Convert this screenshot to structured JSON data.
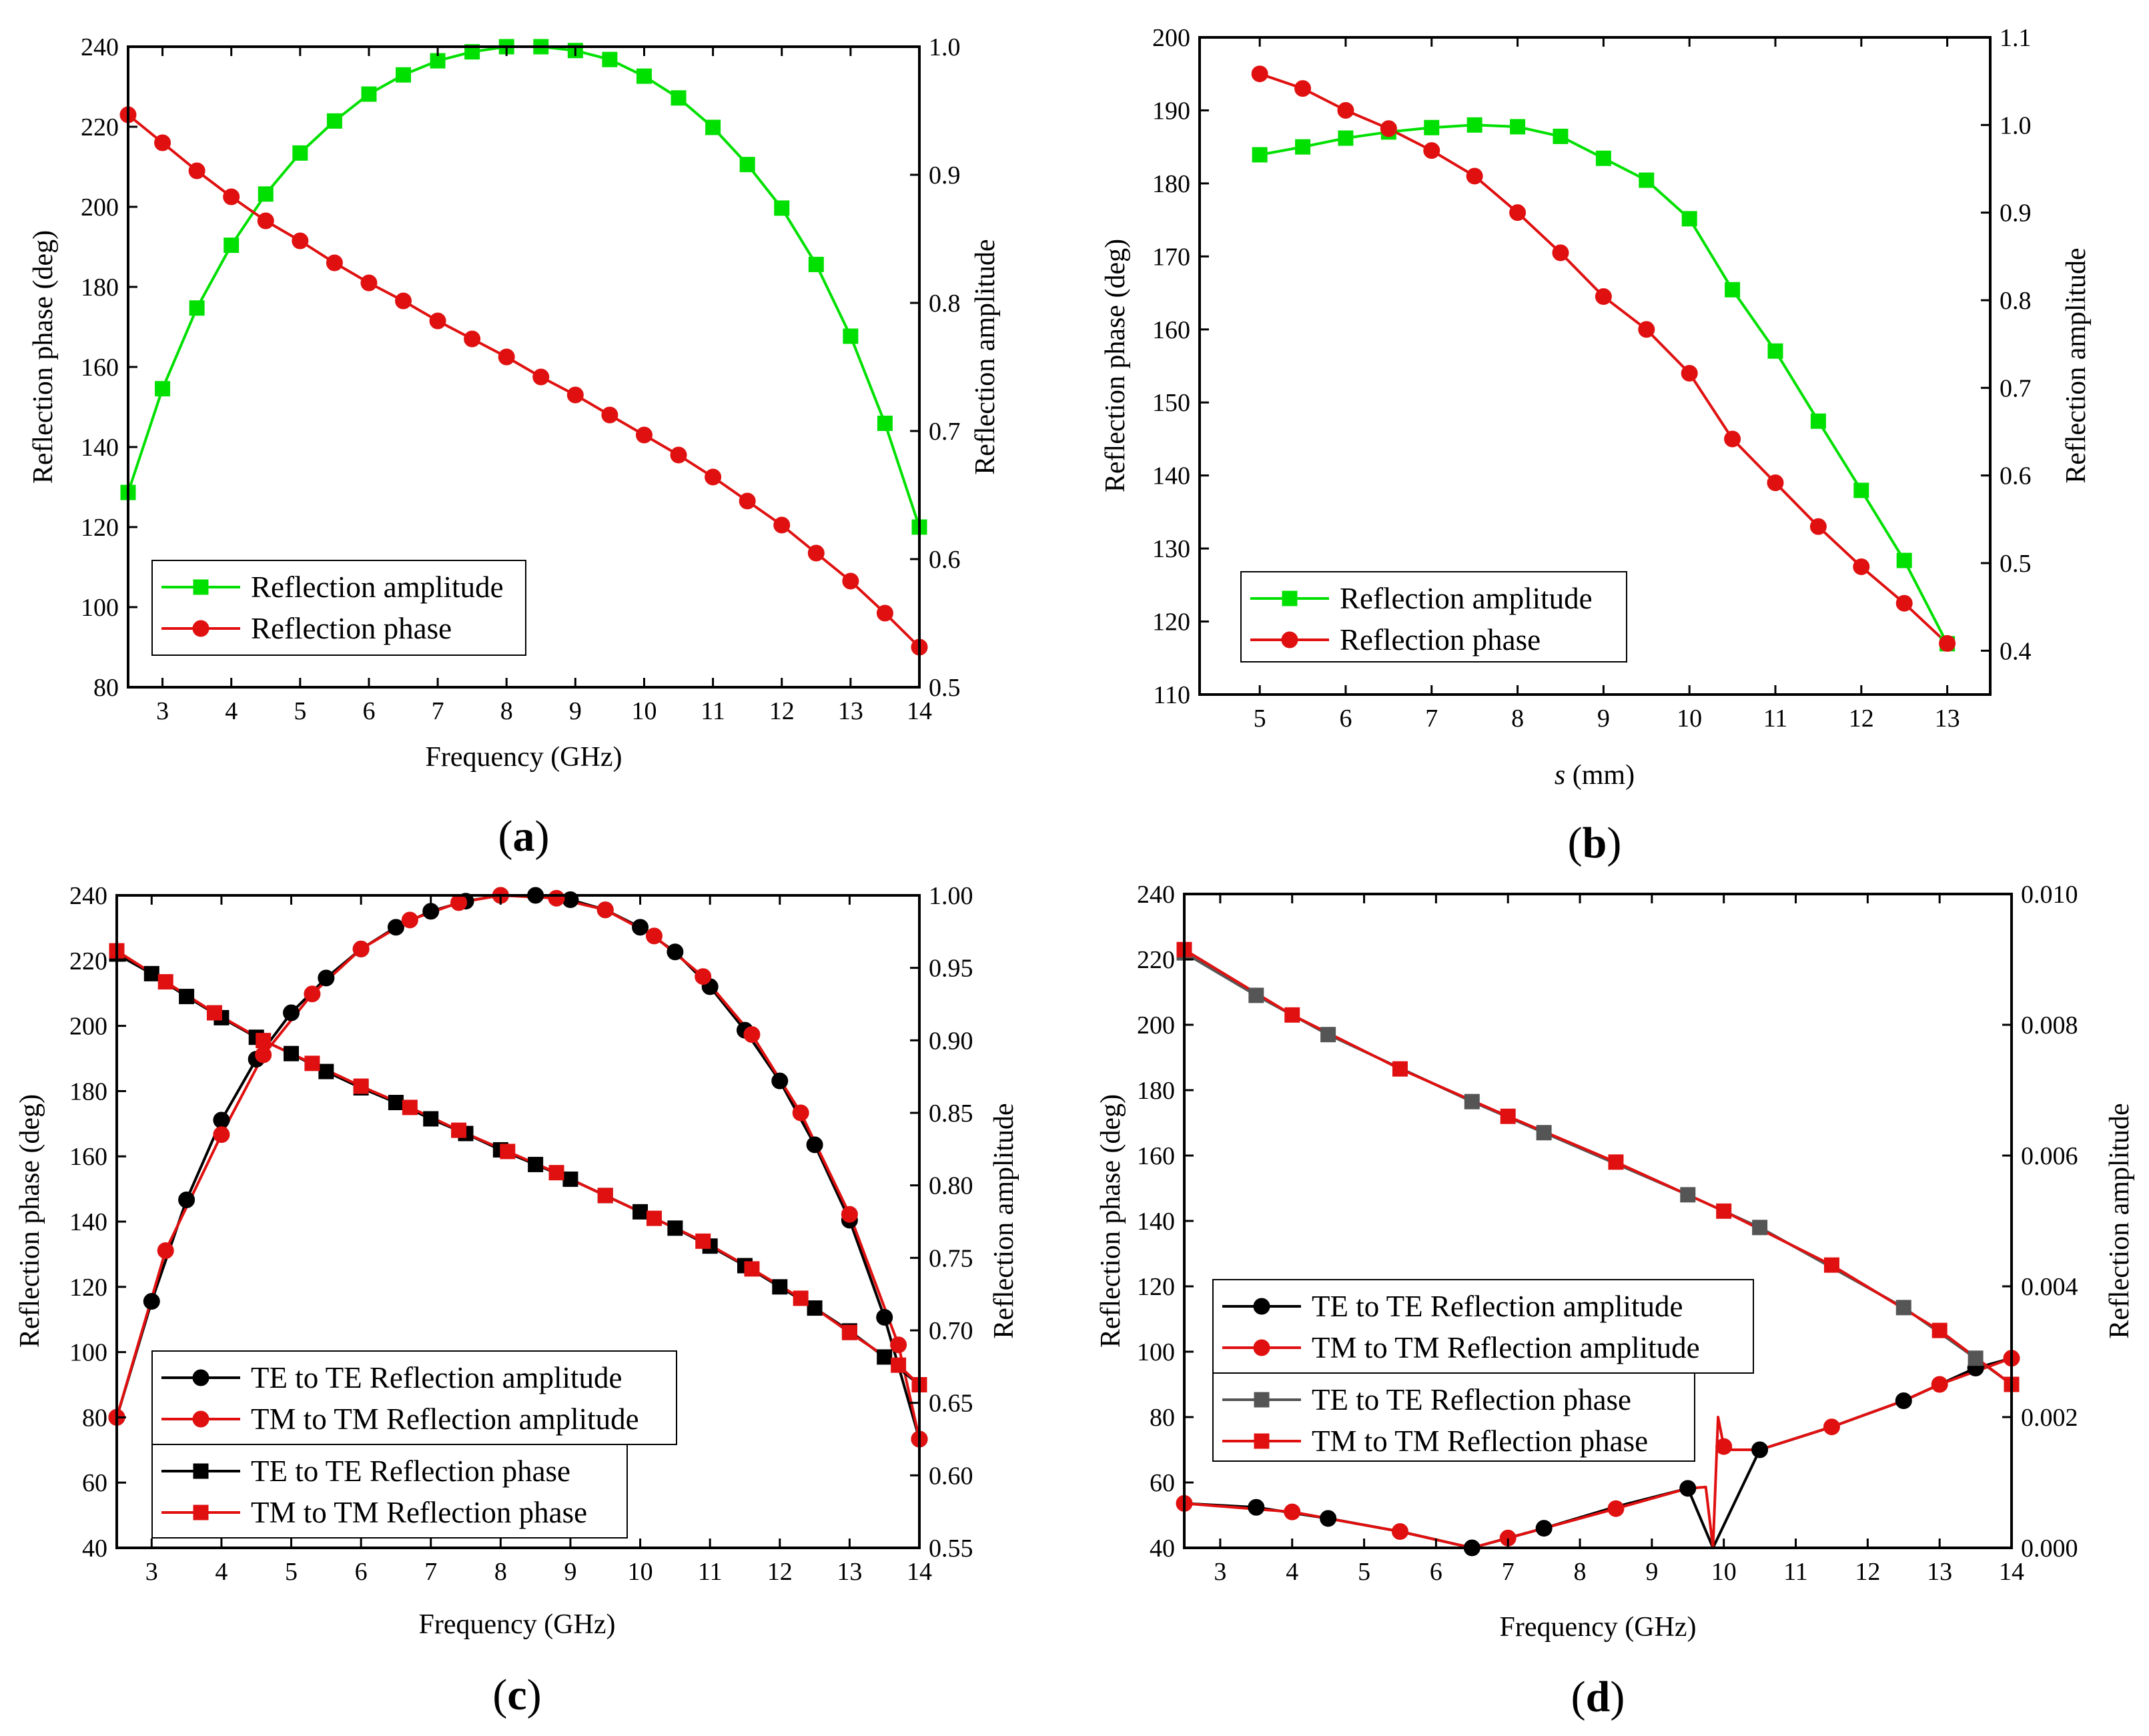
{
  "chart_data": [
    {
      "type": "line",
      "panel_label": "(a)",
      "xlabel": "Frequency (GHz)",
      "ylabel_left": "Reflection phase (deg)",
      "ylabel_right": "Reflection amplitude",
      "xlim": [
        2.5,
        14
      ],
      "ylim_left": [
        80,
        240
      ],
      "ylim_right": [
        0.5,
        1.0
      ],
      "x_ticks": [
        3,
        4,
        5,
        6,
        7,
        8,
        9,
        10,
        11,
        12,
        13,
        14
      ],
      "y_ticks_left": [
        80,
        100,
        120,
        140,
        160,
        180,
        200,
        220,
        240
      ],
      "y_ticks_right": [
        0.5,
        0.6,
        0.7,
        0.8,
        0.9,
        1.0
      ],
      "y_tick_labels_right": [
        "0.5",
        "0.6",
        "0.7",
        "0.8",
        "0.9",
        "1.0"
      ],
      "legend": {
        "placement": "bottom-left"
      },
      "series": [
        {
          "name": "Reflection amplitude",
          "axis": "right",
          "color": "#00e000",
          "marker": "square",
          "x": [
            2.5,
            3,
            3.5,
            4,
            4.5,
            5,
            5.5,
            6,
            6.5,
            7,
            7.5,
            8,
            8.5,
            9,
            9.5,
            10,
            10.5,
            11,
            11.5,
            12,
            12.5,
            13,
            13.5,
            14
          ],
          "values": [
            0.652,
            0.733,
            0.796,
            0.845,
            0.885,
            0.917,
            0.942,
            0.963,
            0.978,
            0.989,
            0.996,
            1.0,
            1.0,
            0.997,
            0.99,
            0.977,
            0.96,
            0.937,
            0.908,
            0.874,
            0.83,
            0.774,
            0.706,
            0.625
          ]
        },
        {
          "name": "Reflection phase",
          "axis": "left",
          "color": "#e01010",
          "marker": "circle",
          "x": [
            2.5,
            3,
            3.5,
            4,
            4.5,
            5,
            5.5,
            6,
            6.5,
            7,
            7.5,
            8,
            8.5,
            9,
            9.5,
            10,
            10.5,
            11,
            11.5,
            12,
            12.5,
            13,
            13.5,
            14
          ],
          "values": [
            223,
            216,
            209,
            202.5,
            196.5,
            191.5,
            186,
            181,
            176.5,
            171.5,
            167,
            162.5,
            157.5,
            153,
            148,
            143,
            138,
            132.5,
            126.5,
            120.5,
            113.5,
            106.5,
            98.5,
            90
          ]
        }
      ]
    },
    {
      "type": "line",
      "panel_label": "(b)",
      "xlabel_italic": "s",
      "xlabel": " (mm)",
      "ylabel_left": "Reflection phase (deg)",
      "ylabel_right": "Reflection amplitude",
      "xlim": [
        4.3,
        13.5
      ],
      "ylim_left": [
        110,
        200
      ],
      "ylim_right": [
        0.35,
        1.1
      ],
      "x_ticks": [
        5,
        6,
        7,
        8,
        9,
        10,
        11,
        12,
        13
      ],
      "y_ticks_left": [
        110,
        120,
        130,
        140,
        150,
        160,
        170,
        180,
        190,
        200
      ],
      "y_ticks_right": [
        0.4,
        0.5,
        0.6,
        0.7,
        0.8,
        0.9,
        1.0,
        1.1
      ],
      "y_tick_labels_right": [
        "0.4",
        "0.5",
        "0.6",
        "0.7",
        "0.8",
        "0.9",
        "1.0",
        "1.1"
      ],
      "legend": {
        "placement": "bottom-left"
      },
      "series": [
        {
          "name": "Reflection amplitude",
          "axis": "right",
          "color": "#00e000",
          "marker": "square",
          "x": [
            5,
            5.5,
            6,
            6.5,
            7,
            7.5,
            8,
            8.5,
            9,
            9.5,
            10,
            10.5,
            11,
            11.5,
            12,
            12.5,
            13
          ],
          "values": [
            0.966,
            0.975,
            0.985,
            0.992,
            0.997,
            1.0,
            0.998,
            0.987,
            0.962,
            0.937,
            0.893,
            0.812,
            0.742,
            0.662,
            0.583,
            0.503,
            0.408
          ]
        },
        {
          "name": "Reflection phase",
          "axis": "left",
          "color": "#e01010",
          "marker": "circle",
          "x": [
            5,
            5.5,
            6,
            6.5,
            7,
            7.5,
            8,
            8.5,
            9,
            9.5,
            10,
            10.5,
            11,
            11.5,
            12,
            12.5,
            13
          ],
          "values": [
            195,
            193,
            190,
            187.5,
            184.5,
            181,
            176,
            170.5,
            164.5,
            160,
            154,
            145,
            139,
            133,
            127.5,
            122.5,
            117
          ]
        }
      ]
    },
    {
      "type": "line",
      "panel_label": "(c)",
      "xlabel": "Frequency (GHz)",
      "ylabel_left": "Reflection phase (deg)",
      "ylabel_right": "Reflection amplitude",
      "xlim": [
        2.5,
        14
      ],
      "ylim_left": [
        40,
        240
      ],
      "ylim_right": [
        0.55,
        1.0
      ],
      "x_ticks": [
        3,
        4,
        5,
        6,
        7,
        8,
        9,
        10,
        11,
        12,
        13,
        14
      ],
      "y_ticks_left": [
        40,
        60,
        80,
        100,
        120,
        140,
        160,
        180,
        200,
        220,
        240
      ],
      "y_ticks_right": [
        0.55,
        0.6,
        0.65,
        0.7,
        0.75,
        0.8,
        0.85,
        0.9,
        0.95,
        1.0
      ],
      "y_tick_labels_right": [
        "0.55",
        "0.60",
        "0.65",
        "0.70",
        "0.75",
        "0.80",
        "0.85",
        "0.90",
        "0.95",
        "1.00"
      ],
      "legend": {
        "placement": "bottom-left"
      },
      "series": [
        {
          "name": "TE to TE Reflection amplitude",
          "axis": "right",
          "color": "#000000",
          "marker": "circle",
          "x": [
            2.5,
            3,
            3.5,
            4,
            4.5,
            5,
            5.5,
            6,
            6.5,
            7,
            7.5,
            8,
            8.5,
            9,
            9.5,
            10,
            10.5,
            11,
            11.5,
            12,
            12.5,
            13,
            13.5,
            14
          ],
          "values": [
            0.64,
            0.72,
            0.79,
            0.845,
            0.887,
            0.919,
            0.943,
            0.963,
            0.978,
            0.989,
            0.996,
            1.0,
            1.0,
            0.997,
            0.99,
            0.978,
            0.961,
            0.937,
            0.907,
            0.872,
            0.828,
            0.776,
            0.709,
            0.625
          ]
        },
        {
          "name": "TM to TM Reflection amplitude",
          "axis": "right",
          "color": "#e01010",
          "marker": "circle",
          "x": [
            2.5,
            3.2,
            4,
            4.6,
            5.3,
            6,
            6.7,
            7.4,
            8,
            8.8,
            9.5,
            10.2,
            10.9,
            11.6,
            12.3,
            13,
            13.7,
            14
          ],
          "values": [
            0.64,
            0.755,
            0.835,
            0.89,
            0.932,
            0.963,
            0.983,
            0.995,
            1.0,
            0.998,
            0.99,
            0.972,
            0.944,
            0.904,
            0.85,
            0.78,
            0.69,
            0.625
          ]
        },
        {
          "name": "TE to TE Reflection phase",
          "axis": "left",
          "color": "#000000",
          "marker": "square",
          "x": [
            2.5,
            3,
            3.5,
            4,
            4.5,
            5,
            5.5,
            6,
            6.5,
            7,
            7.5,
            8,
            8.5,
            9,
            9.5,
            10,
            10.5,
            11,
            11.5,
            12,
            12.5,
            13,
            13.5,
            14
          ],
          "values": [
            222,
            216,
            209,
            202.5,
            196.5,
            191.5,
            186,
            181,
            176.5,
            171.5,
            167,
            162,
            157.5,
            153,
            148,
            143,
            138,
            132.5,
            126.5,
            120,
            113.5,
            106.5,
            98.5,
            90
          ]
        },
        {
          "name": "TM to TM Reflection phase",
          "axis": "left",
          "color": "#e01010",
          "marker": "square",
          "x": [
            2.5,
            3.2,
            3.9,
            4.6,
            5.3,
            6,
            6.7,
            7.4,
            8.1,
            8.8,
            9.5,
            10.2,
            10.9,
            11.6,
            12.3,
            13,
            13.7,
            14
          ],
          "values": [
            223,
            213.5,
            204,
            195.5,
            188.5,
            181.5,
            175,
            168,
            161.5,
            155,
            148,
            141,
            134,
            125.5,
            116.5,
            106,
            96,
            90
          ]
        }
      ]
    },
    {
      "type": "line",
      "panel_label": "(d)",
      "xlabel": "Frequency (GHz)",
      "ylabel_left": "Reflection phase (deg)",
      "ylabel_right": "Reflection amplitude",
      "xlim": [
        2.5,
        14
      ],
      "ylim_left": [
        40,
        240
      ],
      "ylim_right": [
        0.0,
        0.01
      ],
      "x_ticks": [
        3,
        4,
        5,
        6,
        7,
        8,
        9,
        10,
        11,
        12,
        13,
        14
      ],
      "y_ticks_left": [
        40,
        60,
        80,
        100,
        120,
        140,
        160,
        180,
        200,
        220,
        240
      ],
      "y_ticks_right": [
        0.0,
        0.002,
        0.004,
        0.006,
        0.008,
        0.01
      ],
      "y_tick_labels_right": [
        "0.000",
        "0.002",
        "0.004",
        "0.006",
        "0.008",
        "0.010"
      ],
      "legend": {
        "placement": "bottom-left"
      },
      "series": [
        {
          "name": "TE to TE Reflection amplitude",
          "axis": "right",
          "color": "#000000",
          "marker": "circle",
          "x": [
            2.5,
            3.5,
            4.5,
            5.5,
            6.5,
            7.5,
            8.5,
            9.5,
            9.85,
            10.5,
            11.5,
            12.5,
            13.5,
            14
          ],
          "values": [
            0.00068,
            0.00062,
            0.00045,
            0.00025,
            0.0,
            0.0003,
            0.00063,
            0.00091,
            0.0,
            0.0015,
            0.00185,
            0.00225,
            0.00275,
            0.0029
          ],
          "marker_x": [
            3.5,
            4.5,
            6.5,
            7.5,
            9.5,
            10.5,
            12.5,
            13.5
          ]
        },
        {
          "name": "TM to TM Reflection amplitude",
          "axis": "right",
          "color": "#e01010",
          "marker": "circle",
          "x": [
            2.5,
            4,
            5.5,
            6.5,
            7,
            8.5,
            9.5,
            9.75,
            9.85,
            9.92,
            10,
            10.1,
            10.5,
            11.5,
            12.5,
            13,
            14
          ],
          "values": [
            0.00068,
            0.00055,
            0.00025,
            0.0,
            0.00015,
            0.0006,
            0.00091,
            0.00093,
            0.0,
            0.002,
            0.00155,
            0.0015,
            0.0015,
            0.00185,
            0.00225,
            0.0025,
            0.0029
          ],
          "marker_x": [
            2.5,
            4,
            5.5,
            7,
            8.5,
            10,
            11.5,
            13,
            14
          ]
        },
        {
          "name": "TE to TE Reflection phase",
          "axis": "left",
          "color": "#555555",
          "marker": "square",
          "x": [
            2.5,
            3.5,
            4.5,
            6.5,
            7.5,
            9.5,
            10.5,
            12.5,
            13.5,
            14
          ],
          "values": [
            222,
            209,
            197,
            176.5,
            167,
            148,
            138,
            113.5,
            98,
            90
          ]
        },
        {
          "name": "TM to TM Reflection phase",
          "axis": "left",
          "color": "#e01010",
          "marker": "square",
          "x": [
            2.5,
            4,
            5.5,
            7,
            8.5,
            10,
            11.5,
            13,
            14
          ],
          "values": [
            223,
            203,
            186.5,
            172,
            158,
            143,
            126.5,
            106.5,
            90
          ]
        }
      ]
    }
  ]
}
